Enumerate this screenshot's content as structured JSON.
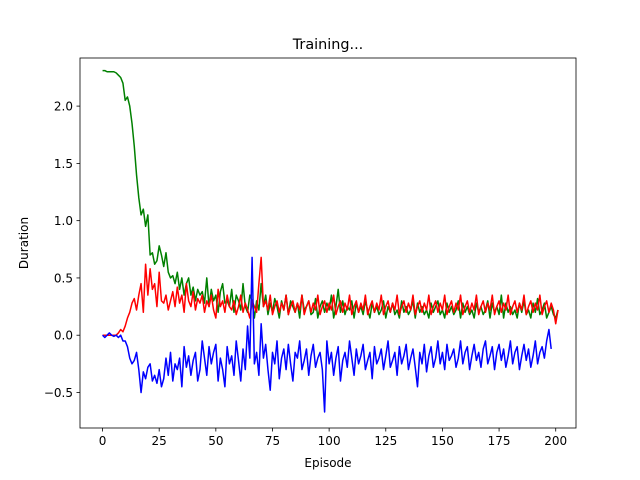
{
  "chart_data": {
    "type": "line",
    "title": "Training...",
    "xlabel": "Episode",
    "ylabel": "Duration",
    "xlim": [
      -9.95,
      208.95
    ],
    "ylim": [
      -0.81,
      2.42
    ],
    "xticks": [
      0,
      25,
      50,
      75,
      100,
      125,
      150,
      175,
      200
    ],
    "xtick_labels": [
      "0",
      "25",
      "50",
      "75",
      "100",
      "125",
      "150",
      "175",
      "200"
    ],
    "yticks": [
      -0.5,
      0.0,
      0.5,
      1.0,
      1.5,
      2.0
    ],
    "ytick_labels": [
      "−0.5",
      "0.0",
      "0.5",
      "1.0",
      "1.5",
      "2.0"
    ],
    "grid": false,
    "series": [
      {
        "color": "#008000",
        "x_start": 0,
        "values": [
          2.31,
          2.31,
          2.3,
          2.3,
          2.3,
          2.3,
          2.29,
          2.27,
          2.25,
          2.2,
          2.05,
          2.08,
          2.0,
          1.85,
          1.65,
          1.4,
          1.2,
          1.05,
          1.1,
          0.95,
          1.05,
          0.7,
          0.72,
          0.62,
          0.65,
          0.78,
          0.7,
          0.6,
          0.72,
          0.55,
          0.5,
          0.52,
          0.45,
          0.55,
          0.4,
          0.5,
          0.35,
          0.45,
          0.5,
          0.35,
          0.42,
          0.3,
          0.4,
          0.35,
          0.38,
          0.28,
          0.5,
          0.25,
          0.4,
          0.3,
          0.35,
          0.2,
          0.38,
          0.45,
          0.28,
          0.3,
          0.25,
          0.4,
          0.2,
          0.35,
          0.3,
          0.22,
          0.45,
          0.25,
          0.2,
          0.35,
          0.3,
          0.15,
          0.3,
          0.22,
          0.45,
          0.25,
          0.35,
          0.18,
          0.28,
          0.2,
          0.32,
          0.25,
          0.15,
          0.3,
          0.22,
          0.35,
          0.18,
          0.3,
          0.25,
          0.2,
          0.28,
          0.15,
          0.35,
          0.22,
          0.25,
          0.3,
          0.18,
          0.2,
          0.32,
          0.15,
          0.25,
          0.3,
          0.2,
          0.28,
          0.22,
          0.35,
          0.15,
          0.25,
          0.4,
          0.2,
          0.3,
          0.18,
          0.25,
          0.22,
          0.3,
          0.15,
          0.28,
          0.2,
          0.25,
          0.18,
          0.3,
          0.22,
          0.15,
          0.28,
          0.2,
          0.25,
          0.18,
          0.22,
          0.3,
          0.15,
          0.25,
          0.2,
          0.28,
          0.18,
          0.22,
          0.15,
          0.3,
          0.2,
          0.25,
          0.18,
          0.22,
          0.3,
          0.15,
          0.28,
          0.2,
          0.25,
          0.18,
          0.22,
          0.15,
          0.28,
          0.2,
          0.25,
          0.3,
          0.18,
          0.22,
          0.15,
          0.28,
          0.2,
          0.25,
          0.18,
          0.22,
          0.3,
          0.15,
          0.28,
          0.2,
          0.25,
          0.18,
          0.22,
          0.15,
          0.28,
          0.2,
          0.25,
          0.18,
          0.22,
          0.3,
          0.15,
          0.28,
          0.2,
          0.25,
          0.18,
          0.35,
          0.15,
          0.28,
          0.2,
          0.25,
          0.18,
          0.22,
          0.15,
          0.28,
          0.2,
          0.3,
          0.18,
          0.22,
          0.15,
          0.28,
          0.2,
          0.32,
          0.18,
          0.22,
          0.28,
          0.15,
          0.2,
          0.25,
          0.18,
          0.15,
          0.22
        ]
      },
      {
        "color": "#ff0000",
        "x_start": 0,
        "values": [
          0.0,
          0.0,
          0.0,
          0.0,
          0.0,
          0.0,
          0.0,
          0.02,
          0.05,
          0.03,
          0.08,
          0.15,
          0.2,
          0.28,
          0.32,
          0.22,
          0.35,
          0.45,
          0.2,
          0.62,
          0.35,
          0.58,
          0.4,
          0.45,
          0.25,
          0.55,
          0.3,
          0.28,
          0.35,
          0.22,
          0.3,
          0.38,
          0.25,
          0.42,
          0.28,
          0.35,
          0.2,
          0.45,
          0.3,
          0.25,
          0.38,
          0.22,
          0.32,
          0.28,
          0.35,
          0.2,
          0.3,
          0.25,
          0.35,
          0.22,
          0.15,
          0.4,
          0.25,
          0.3,
          0.2,
          0.35,
          0.25,
          0.22,
          0.3,
          0.18,
          0.25,
          0.35,
          0.2,
          0.28,
          0.22,
          0.15,
          0.3,
          0.25,
          0.2,
          0.45,
          0.68,
          0.25,
          0.3,
          0.22,
          0.35,
          0.18,
          0.25,
          0.3,
          0.2,
          0.28,
          0.22,
          0.35,
          0.18,
          0.25,
          0.3,
          0.2,
          0.28,
          0.22,
          0.35,
          0.18,
          0.25,
          0.3,
          0.2,
          0.28,
          0.22,
          0.35,
          0.18,
          0.25,
          0.3,
          0.2,
          0.28,
          0.22,
          0.35,
          0.18,
          0.25,
          0.3,
          0.2,
          0.28,
          0.22,
          0.35,
          0.18,
          0.25,
          0.3,
          0.2,
          0.28,
          0.22,
          0.35,
          0.18,
          0.25,
          0.3,
          0.2,
          0.28,
          0.22,
          0.35,
          0.18,
          0.25,
          0.3,
          0.2,
          0.28,
          0.22,
          0.35,
          0.18,
          0.25,
          0.3,
          0.2,
          0.28,
          0.22,
          0.35,
          0.18,
          0.25,
          0.3,
          0.2,
          0.28,
          0.22,
          0.35,
          0.18,
          0.25,
          0.3,
          0.2,
          0.28,
          0.22,
          0.35,
          0.18,
          0.25,
          0.3,
          0.2,
          0.28,
          0.22,
          0.35,
          0.18,
          0.25,
          0.3,
          0.2,
          0.28,
          0.22,
          0.35,
          0.18,
          0.25,
          0.3,
          0.2,
          0.28,
          0.22,
          0.35,
          0.18,
          0.25,
          0.3,
          0.2,
          0.28,
          0.22,
          0.35,
          0.18,
          0.25,
          0.3,
          0.2,
          0.28,
          0.22,
          0.35,
          0.18,
          0.25,
          0.3,
          0.2,
          0.28,
          0.22,
          0.35,
          0.18,
          0.25,
          0.3,
          0.2,
          0.28,
          0.22,
          0.1,
          0.22
        ]
      },
      {
        "color": "#0000ff",
        "x_start": 0,
        "values": [
          0.0,
          -0.02,
          0.0,
          0.02,
          0.0,
          -0.01,
          0.0,
          -0.02,
          0.0,
          -0.05,
          -0.05,
          -0.1,
          -0.2,
          -0.25,
          -0.22,
          -0.15,
          -0.3,
          -0.5,
          -0.32,
          -0.38,
          -0.28,
          -0.25,
          -0.4,
          -0.35,
          -0.42,
          -0.3,
          -0.45,
          -0.38,
          -0.2,
          -0.35,
          -0.15,
          -0.4,
          -0.25,
          -0.3,
          -0.2,
          -0.45,
          -0.1,
          -0.28,
          -0.18,
          -0.35,
          -0.22,
          -0.15,
          -0.4,
          -0.3,
          -0.05,
          -0.2,
          -0.35,
          -0.1,
          -0.25,
          -0.15,
          -0.08,
          -0.4,
          -0.2,
          -0.3,
          -0.45,
          -0.1,
          -0.25,
          -0.18,
          -0.35,
          -0.05,
          -0.22,
          -0.4,
          -0.12,
          -0.3,
          0.08,
          -0.2,
          0.68,
          -0.25,
          -0.15,
          -0.35,
          0.1,
          -0.2,
          -0.08,
          -0.3,
          -0.48,
          -0.15,
          -0.25,
          -0.05,
          -0.38,
          -0.2,
          -0.12,
          -0.3,
          -0.08,
          -0.25,
          -0.4,
          -0.15,
          -0.2,
          -0.05,
          -0.3,
          -0.22,
          -0.12,
          -0.35,
          -0.18,
          -0.08,
          -0.28,
          -0.2,
          -0.15,
          -0.3,
          -0.67,
          -0.05,
          -0.25,
          -0.15,
          -0.35,
          -0.2,
          -0.1,
          -0.4,
          -0.22,
          -0.15,
          -0.28,
          -0.05,
          -0.2,
          -0.35,
          -0.12,
          -0.25,
          -0.18,
          -0.08,
          -0.3,
          -0.22,
          -0.15,
          -0.38,
          -0.1,
          -0.25,
          -0.2,
          -0.12,
          -0.3,
          -0.18,
          -0.05,
          -0.28,
          -0.22,
          -0.15,
          -0.35,
          -0.1,
          -0.25,
          -0.18,
          -0.08,
          -0.3,
          -0.2,
          -0.12,
          -0.28,
          -0.45,
          -0.15,
          -0.25,
          -0.08,
          -0.32,
          -0.18,
          -0.1,
          -0.28,
          -0.2,
          -0.05,
          -0.25,
          -0.15,
          -0.3,
          -0.08,
          -0.22,
          -0.18,
          -0.12,
          -0.28,
          -0.2,
          -0.05,
          -0.25,
          -0.15,
          -0.1,
          -0.3,
          -0.18,
          -0.08,
          -0.22,
          -0.15,
          -0.28,
          -0.12,
          -0.05,
          -0.25,
          -0.18,
          -0.1,
          -0.3,
          -0.15,
          -0.08,
          -0.22,
          -0.12,
          -0.28,
          -0.18,
          -0.05,
          -0.25,
          -0.15,
          -0.1,
          -0.3,
          -0.18,
          -0.08,
          -0.22,
          -0.12,
          -0.28,
          -0.18,
          -0.05,
          -0.25,
          -0.15,
          -0.1,
          -0.2,
          -0.05,
          0.05,
          -0.12
        ]
      }
    ]
  }
}
